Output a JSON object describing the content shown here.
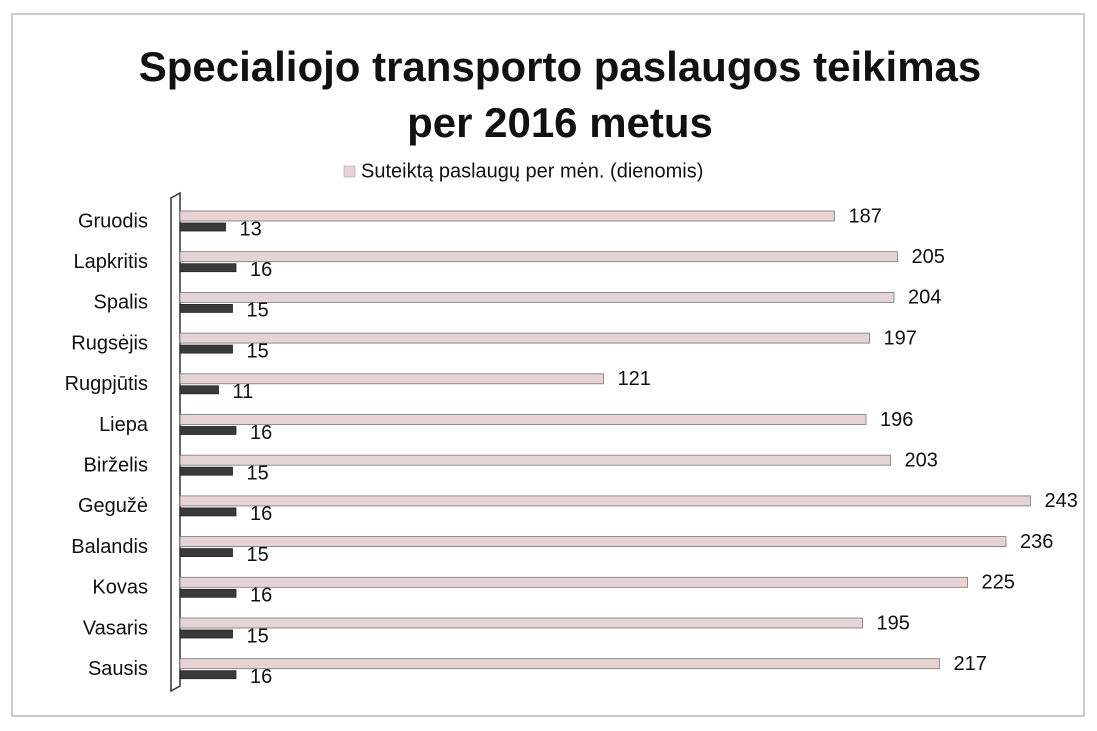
{
  "chart_data": {
    "type": "bar",
    "orientation": "horizontal",
    "title": [
      "Specialiojo transporto paslaugos teikimas",
      "per 2016 metus"
    ],
    "categories": [
      "Gruodis",
      "Lapkritis",
      "Spalis",
      "Rugsėjis",
      "Rugpjūtis",
      "Liepa",
      "Birželis",
      "Gegužė",
      "Balandis",
      "Kovas",
      "Vasaris",
      "Sausis"
    ],
    "series": [
      {
        "name": "Suteiktą paslaugų per mėn. (dienomis)",
        "color": "#e6d3d3",
        "values": [
          187,
          205,
          204,
          197,
          121,
          196,
          203,
          243,
          236,
          225,
          195,
          217
        ]
      },
      {
        "color": "#3a3a3a",
        "values": [
          13,
          16,
          15,
          15,
          11,
          16,
          15,
          16,
          15,
          16,
          15,
          16
        ]
      }
    ],
    "legend": "top"
  }
}
